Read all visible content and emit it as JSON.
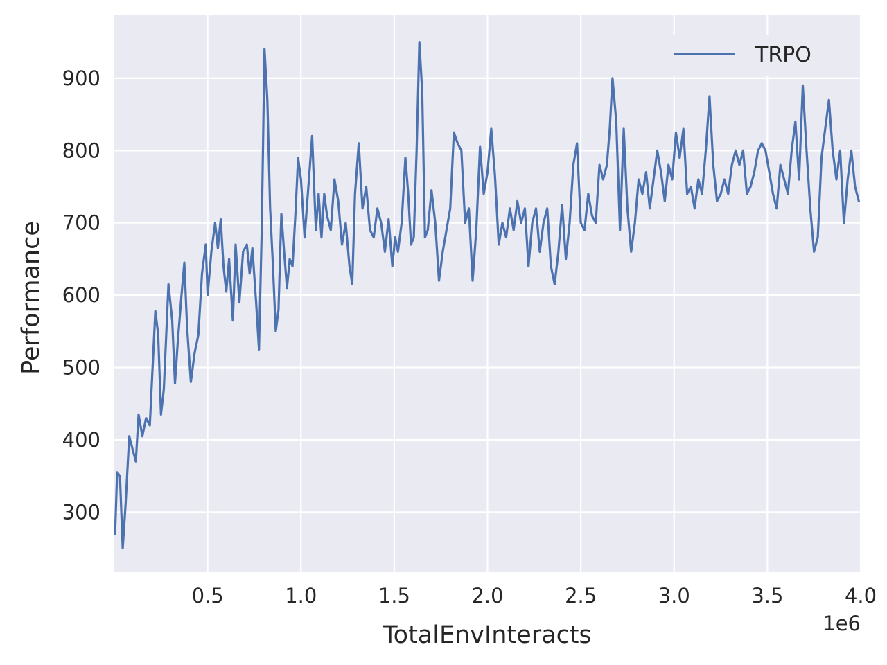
{
  "chart_data": {
    "type": "line",
    "title": "",
    "xlabel": "TotalEnvInteracts",
    "ylabel": "Performance",
    "x_offset_label": "1e6",
    "xlim": [
      0.0,
      4.0
    ],
    "ylim": [
      217,
      987
    ],
    "x_ticks": [
      0.5,
      1.0,
      1.5,
      2.0,
      2.5,
      3.0,
      3.5,
      4.0
    ],
    "x_tick_labels": [
      "0.5",
      "1.0",
      "1.5",
      "2.0",
      "2.5",
      "3.0",
      "3.5",
      "4.0"
    ],
    "y_ticks": [
      300,
      400,
      500,
      600,
      700,
      800,
      900
    ],
    "y_tick_labels": [
      "300",
      "400",
      "500",
      "600",
      "700",
      "800",
      "900"
    ],
    "grid": true,
    "legend_position": "top-right",
    "x_unit_multiplier": 1000000,
    "series": [
      {
        "name": "TRPO",
        "color": "#4c72b0",
        "points": [
          [
            0.004,
            270
          ],
          [
            0.015,
            355
          ],
          [
            0.03,
            350
          ],
          [
            0.045,
            250
          ],
          [
            0.06,
            310
          ],
          [
            0.08,
            405
          ],
          [
            0.1,
            385
          ],
          [
            0.115,
            370
          ],
          [
            0.13,
            435
          ],
          [
            0.15,
            405
          ],
          [
            0.17,
            430
          ],
          [
            0.19,
            420
          ],
          [
            0.205,
            500
          ],
          [
            0.22,
            578
          ],
          [
            0.235,
            545
          ],
          [
            0.25,
            435
          ],
          [
            0.265,
            470
          ],
          [
            0.29,
            615
          ],
          [
            0.31,
            565
          ],
          [
            0.325,
            478
          ],
          [
            0.34,
            535
          ],
          [
            0.36,
            600
          ],
          [
            0.375,
            645
          ],
          [
            0.39,
            555
          ],
          [
            0.41,
            480
          ],
          [
            0.43,
            520
          ],
          [
            0.45,
            545
          ],
          [
            0.47,
            630
          ],
          [
            0.49,
            670
          ],
          [
            0.5,
            600
          ],
          [
            0.52,
            660
          ],
          [
            0.54,
            700
          ],
          [
            0.555,
            665
          ],
          [
            0.57,
            705
          ],
          [
            0.585,
            640
          ],
          [
            0.6,
            605
          ],
          [
            0.615,
            650
          ],
          [
            0.635,
            565
          ],
          [
            0.65,
            670
          ],
          [
            0.67,
            590
          ],
          [
            0.69,
            660
          ],
          [
            0.71,
            670
          ],
          [
            0.725,
            630
          ],
          [
            0.74,
            665
          ],
          [
            0.76,
            590
          ],
          [
            0.775,
            525
          ],
          [
            0.79,
            690
          ],
          [
            0.805,
            940
          ],
          [
            0.82,
            870
          ],
          [
            0.835,
            720
          ],
          [
            0.85,
            640
          ],
          [
            0.865,
            550
          ],
          [
            0.88,
            580
          ],
          [
            0.895,
            712
          ],
          [
            0.91,
            660
          ],
          [
            0.925,
            610
          ],
          [
            0.94,
            650
          ],
          [
            0.955,
            640
          ],
          [
            0.97,
            710
          ],
          [
            0.985,
            790
          ],
          [
            1.0,
            760
          ],
          [
            1.02,
            680
          ],
          [
            1.04,
            750
          ],
          [
            1.06,
            820
          ],
          [
            1.08,
            690
          ],
          [
            1.095,
            740
          ],
          [
            1.11,
            680
          ],
          [
            1.125,
            740
          ],
          [
            1.14,
            710
          ],
          [
            1.16,
            690
          ],
          [
            1.18,
            760
          ],
          [
            1.2,
            730
          ],
          [
            1.22,
            670
          ],
          [
            1.24,
            700
          ],
          [
            1.26,
            640
          ],
          [
            1.275,
            615
          ],
          [
            1.29,
            740
          ],
          [
            1.31,
            810
          ],
          [
            1.33,
            720
          ],
          [
            1.35,
            750
          ],
          [
            1.37,
            690
          ],
          [
            1.39,
            680
          ],
          [
            1.41,
            720
          ],
          [
            1.43,
            700
          ],
          [
            1.45,
            660
          ],
          [
            1.47,
            705
          ],
          [
            1.49,
            640
          ],
          [
            1.505,
            680
          ],
          [
            1.52,
            660
          ],
          [
            1.54,
            700
          ],
          [
            1.56,
            790
          ],
          [
            1.575,
            740
          ],
          [
            1.59,
            670
          ],
          [
            1.605,
            680
          ],
          [
            1.62,
            800
          ],
          [
            1.635,
            950
          ],
          [
            1.65,
            880
          ],
          [
            1.665,
            680
          ],
          [
            1.68,
            690
          ],
          [
            1.7,
            745
          ],
          [
            1.72,
            700
          ],
          [
            1.74,
            620
          ],
          [
            1.76,
            660
          ],
          [
            1.78,
            690
          ],
          [
            1.8,
            720
          ],
          [
            1.82,
            825
          ],
          [
            1.84,
            810
          ],
          [
            1.86,
            800
          ],
          [
            1.88,
            700
          ],
          [
            1.9,
            720
          ],
          [
            1.92,
            620
          ],
          [
            1.94,
            690
          ],
          [
            1.96,
            805
          ],
          [
            1.98,
            740
          ],
          [
            2.0,
            770
          ],
          [
            2.02,
            830
          ],
          [
            2.04,
            765
          ],
          [
            2.06,
            670
          ],
          [
            2.08,
            700
          ],
          [
            2.1,
            680
          ],
          [
            2.12,
            720
          ],
          [
            2.14,
            690
          ],
          [
            2.16,
            730
          ],
          [
            2.18,
            700
          ],
          [
            2.2,
            720
          ],
          [
            2.22,
            640
          ],
          [
            2.24,
            700
          ],
          [
            2.26,
            720
          ],
          [
            2.28,
            660
          ],
          [
            2.3,
            700
          ],
          [
            2.32,
            720
          ],
          [
            2.34,
            640
          ],
          [
            2.36,
            615
          ],
          [
            2.38,
            660
          ],
          [
            2.4,
            725
          ],
          [
            2.42,
            650
          ],
          [
            2.44,
            700
          ],
          [
            2.46,
            780
          ],
          [
            2.48,
            810
          ],
          [
            2.5,
            700
          ],
          [
            2.52,
            690
          ],
          [
            2.54,
            740
          ],
          [
            2.56,
            710
          ],
          [
            2.58,
            700
          ],
          [
            2.6,
            780
          ],
          [
            2.62,
            760
          ],
          [
            2.64,
            780
          ],
          [
            2.655,
            830
          ],
          [
            2.67,
            900
          ],
          [
            2.69,
            840
          ],
          [
            2.71,
            690
          ],
          [
            2.73,
            830
          ],
          [
            2.75,
            720
          ],
          [
            2.77,
            660
          ],
          [
            2.79,
            700
          ],
          [
            2.81,
            760
          ],
          [
            2.83,
            740
          ],
          [
            2.85,
            770
          ],
          [
            2.87,
            720
          ],
          [
            2.89,
            760
          ],
          [
            2.91,
            800
          ],
          [
            2.93,
            770
          ],
          [
            2.95,
            730
          ],
          [
            2.97,
            780
          ],
          [
            2.99,
            760
          ],
          [
            3.01,
            825
          ],
          [
            3.03,
            790
          ],
          [
            3.05,
            830
          ],
          [
            3.07,
            740
          ],
          [
            3.09,
            750
          ],
          [
            3.11,
            720
          ],
          [
            3.13,
            760
          ],
          [
            3.15,
            740
          ],
          [
            3.17,
            800
          ],
          [
            3.19,
            875
          ],
          [
            3.21,
            780
          ],
          [
            3.23,
            730
          ],
          [
            3.25,
            740
          ],
          [
            3.27,
            760
          ],
          [
            3.29,
            740
          ],
          [
            3.31,
            780
          ],
          [
            3.33,
            800
          ],
          [
            3.35,
            780
          ],
          [
            3.37,
            800
          ],
          [
            3.39,
            740
          ],
          [
            3.41,
            750
          ],
          [
            3.43,
            770
          ],
          [
            3.45,
            800
          ],
          [
            3.47,
            810
          ],
          [
            3.49,
            800
          ],
          [
            3.51,
            770
          ],
          [
            3.53,
            740
          ],
          [
            3.55,
            720
          ],
          [
            3.57,
            780
          ],
          [
            3.59,
            760
          ],
          [
            3.61,
            740
          ],
          [
            3.63,
            800
          ],
          [
            3.65,
            840
          ],
          [
            3.67,
            760
          ],
          [
            3.69,
            890
          ],
          [
            3.71,
            800
          ],
          [
            3.73,
            720
          ],
          [
            3.75,
            660
          ],
          [
            3.77,
            680
          ],
          [
            3.79,
            790
          ],
          [
            3.81,
            830
          ],
          [
            3.83,
            870
          ],
          [
            3.85,
            800
          ],
          [
            3.87,
            760
          ],
          [
            3.89,
            800
          ],
          [
            3.91,
            700
          ],
          [
            3.93,
            760
          ],
          [
            3.95,
            800
          ],
          [
            3.97,
            750
          ],
          [
            3.99,
            730
          ]
        ]
      }
    ]
  }
}
